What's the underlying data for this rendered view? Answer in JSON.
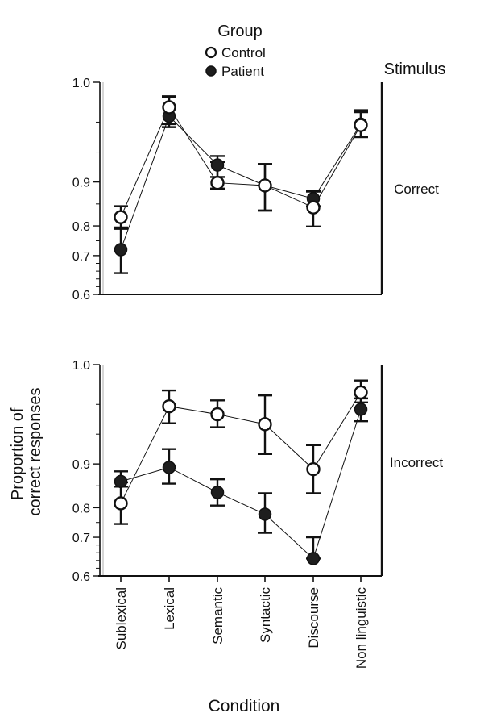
{
  "legend": {
    "title": "Group",
    "entries": [
      {
        "name": "Control",
        "marker": "open-circle"
      },
      {
        "name": "Patient",
        "marker": "filled-circle"
      }
    ]
  },
  "facet_title": "Stimulus",
  "ylabel_line1": "Proportion of",
  "ylabel_line2": "correct responses",
  "xlabel": "Condition",
  "chart_data": {
    "type": "line",
    "style": "point-and-errorbar, panels share x axis",
    "x_title": "Condition",
    "y_title": "Proportion of correct responses",
    "categories": [
      "Sublexical",
      "Lexical",
      "Semantic",
      "Syntactic",
      "Discourse",
      "Non linguistic"
    ],
    "ylim": [
      0.6,
      1.0
    ],
    "y_scale": "nonlinear (spacing increases toward 1.0)",
    "yticks": [
      0.6,
      0.7,
      0.8,
      0.9,
      1.0
    ],
    "ytick_labels": [
      "0.6",
      "0.7",
      "0.8",
      "0.9",
      "1.0"
    ],
    "grid": false,
    "legend_position": "top-center",
    "colors": {
      "patient_fill": "#1e1e1e",
      "control_fill": "#ffffff",
      "stroke": "#111111"
    },
    "panels": [
      {
        "label": "Correct",
        "series": [
          {
            "name": "Control",
            "values": [
              0.82,
              0.975,
              0.898,
              0.892,
              0.842,
              0.957
            ],
            "err_low": [
              0.795,
              0.958,
              0.885,
              0.835,
              0.798,
              0.945
            ],
            "err_high": [
              0.845,
              0.986,
              0.92,
              0.918,
              0.88,
              0.97
            ]
          },
          {
            "name": "Patient",
            "values": [
              0.72,
              0.966,
              0.917,
              0.892,
              0.862,
              0.958
            ],
            "err_low": [
              0.655,
              0.955,
              0.905,
              0.835,
              0.845,
              0.945
            ],
            "err_high": [
              0.79,
              0.985,
              0.926,
              0.918,
              0.878,
              0.972
            ]
          }
        ]
      },
      {
        "label": "Incorrect",
        "series": [
          {
            "name": "Control",
            "values": [
              0.81,
              0.958,
              0.95,
              0.94,
              0.888,
              0.972
            ],
            "err_low": [
              0.745,
              0.941,
              0.937,
              0.91,
              0.833,
              0.962
            ],
            "err_high": [
              0.858,
              0.974,
              0.964,
              0.969,
              0.919,
              0.984
            ]
          },
          {
            "name": "Patient",
            "values": [
              0.86,
              0.892,
              0.835,
              0.778,
              0.645,
              0.955
            ],
            "err_low": [
              0.848,
              0.855,
              0.805,
              0.715,
              0.645,
              0.943
            ],
            "err_high": [
              0.883,
              0.915,
              0.865,
              0.833,
              0.7,
              0.966
            ]
          }
        ]
      }
    ]
  }
}
